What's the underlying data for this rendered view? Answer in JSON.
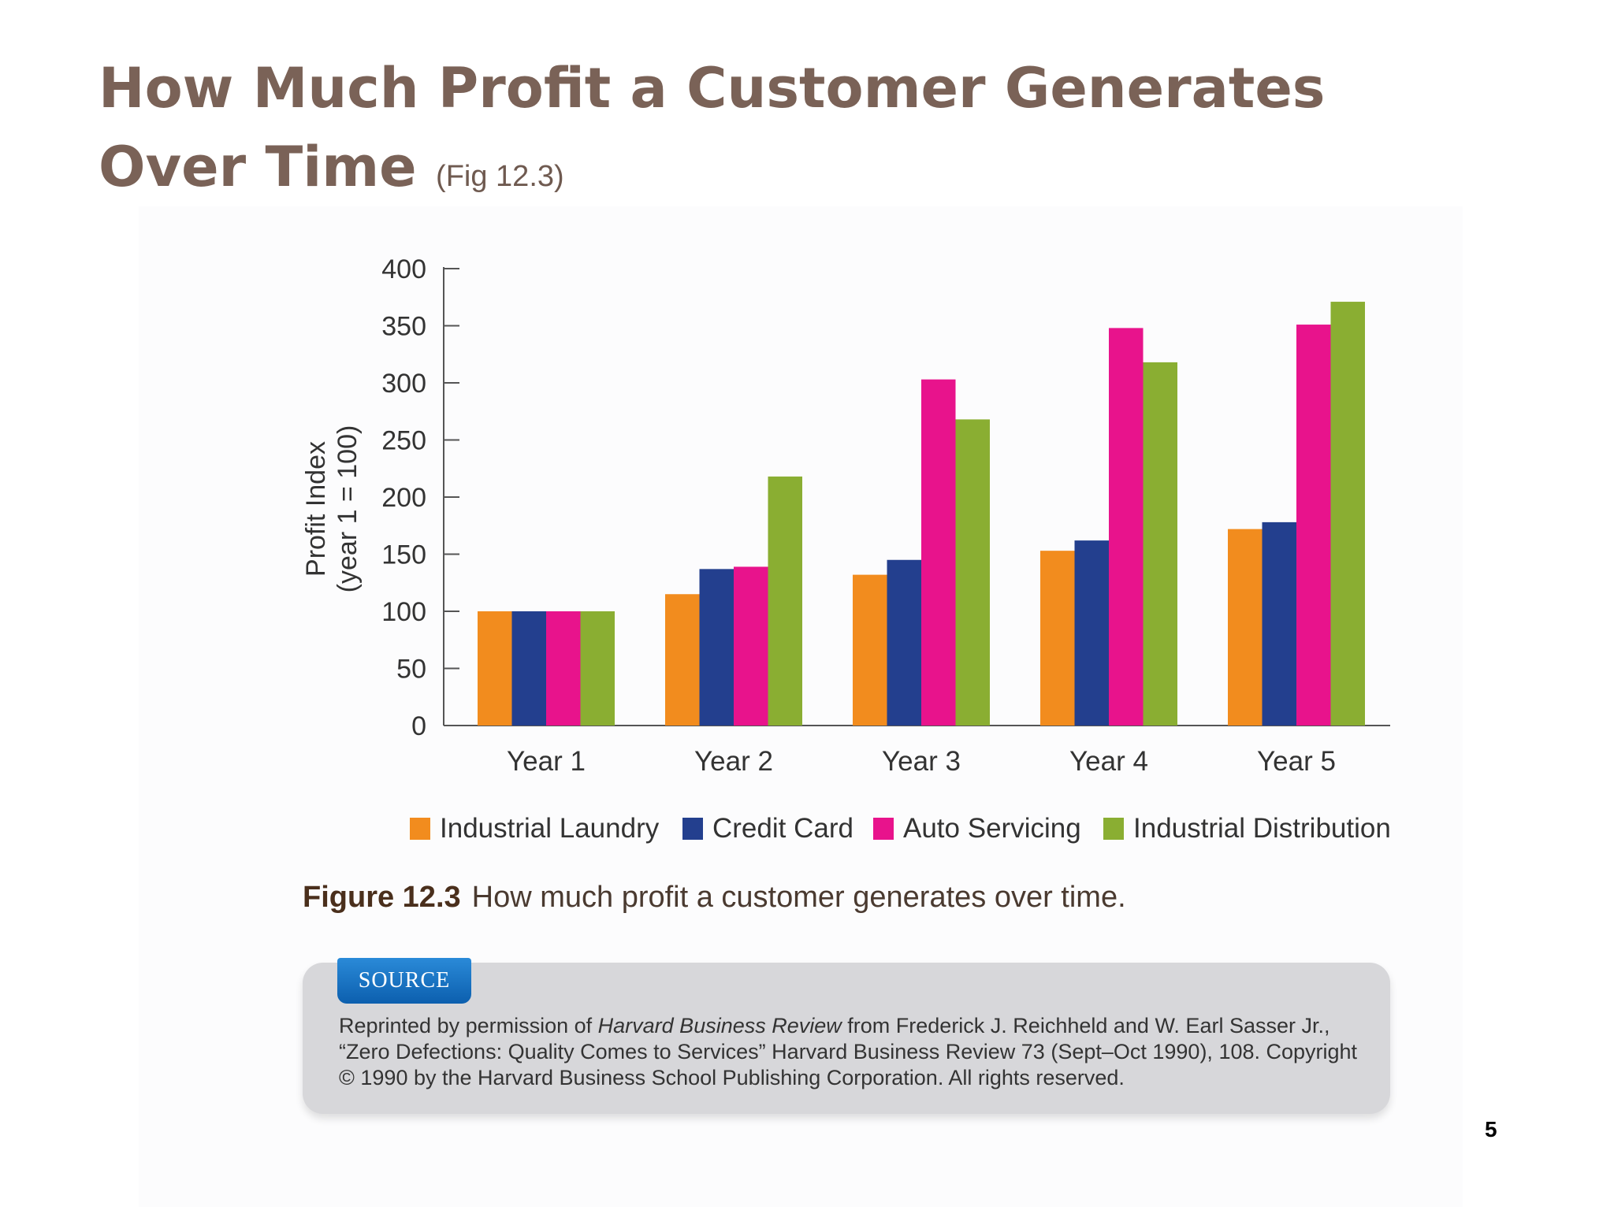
{
  "slide": {
    "title_line1": "How Much Profit a Customer Generates",
    "title_line2": "Over Time",
    "title_fig_ref": "(Fig 12.3)",
    "page_number": "5"
  },
  "figure": {
    "caption_number": "Figure 12.3",
    "caption_text": "How much profit a customer generates over time.",
    "source_label": "SOURCE",
    "source_pre": "Reprinted by permission of ",
    "source_italic": "Harvard Business Review",
    "source_post": " from Frederick J. Reichheld and W. Earl Sasser Jr., “Zero Defections: Quality Comes to Services” Harvard Business Review 73 (Sept–Oct 1990), 108. Copyright © 1990 by the Harvard Business School Publishing Corporation. All rights reserved."
  },
  "chart_data": {
    "type": "bar",
    "title": "",
    "ylabel_line1": "Profit Index",
    "ylabel_line2": "(year 1 = 100)",
    "xlabel": "",
    "ylim": [
      0,
      400
    ],
    "yticks": [
      0,
      50,
      100,
      150,
      200,
      250,
      300,
      350,
      400
    ],
    "categories": [
      "Year 1",
      "Year 2",
      "Year 3",
      "Year 4",
      "Year 5"
    ],
    "series": [
      {
        "name": "Industrial Laundry",
        "color": "#f28c1e",
        "values": [
          100,
          115,
          132,
          153,
          172
        ]
      },
      {
        "name": "Credit Card",
        "color": "#233f8e",
        "values": [
          100,
          137,
          145,
          162,
          178
        ]
      },
      {
        "name": "Auto Servicing",
        "color": "#e8138c",
        "values": [
          100,
          139,
          303,
          348,
          351
        ]
      },
      {
        "name": "Industrial Distribution",
        "color": "#8aae32",
        "values": [
          100,
          218,
          268,
          318,
          371
        ]
      }
    ],
    "legend_position": "bottom",
    "grid": false
  }
}
